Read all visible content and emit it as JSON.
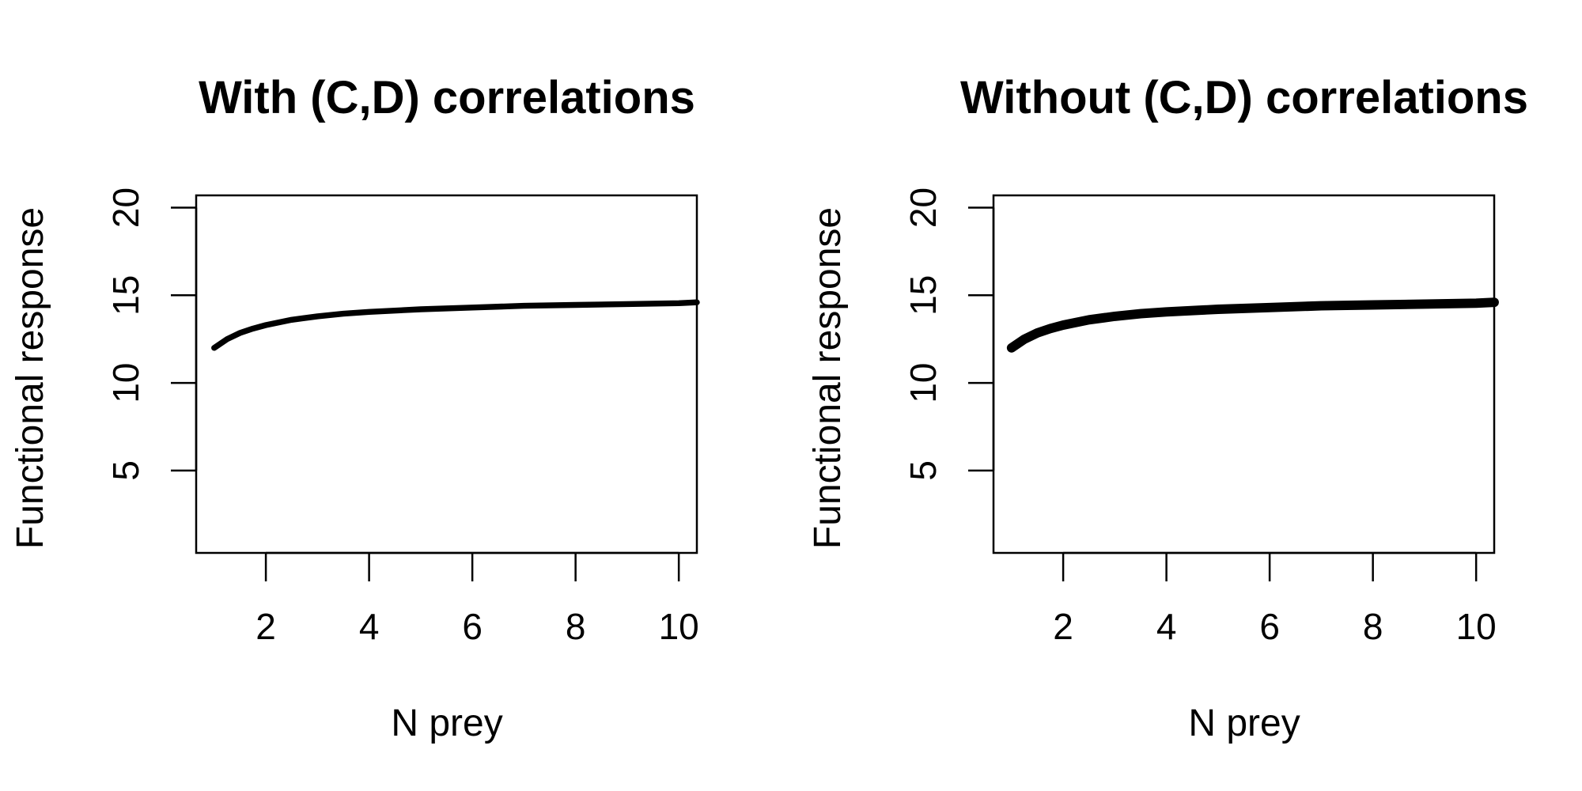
{
  "chart_data": [
    {
      "type": "line",
      "title": "With (C,D) correlations",
      "xlabel": "N prey",
      "ylabel": "Functional response",
      "xlim": [
        0.65,
        10.35
      ],
      "ylim": [
        0.3,
        20.7
      ],
      "xticks": [
        2,
        4,
        6,
        8,
        10
      ],
      "yticks": [
        5,
        10,
        15,
        20
      ],
      "grid": false,
      "series": [
        {
          "x": [
            1,
            1.25,
            1.5,
            1.75,
            2,
            2.5,
            3,
            3.5,
            4,
            5,
            6,
            7,
            8,
            9,
            10,
            10.35
          ],
          "y": [
            12.0,
            12.5,
            12.85,
            13.1,
            13.3,
            13.6,
            13.8,
            13.95,
            14.05,
            14.2,
            14.3,
            14.4,
            14.45,
            14.5,
            14.55,
            14.6
          ],
          "band": 0.1
        }
      ]
    },
    {
      "type": "line",
      "title": "Without (C,D) correlations",
      "xlabel": "N prey",
      "ylabel": "Functional response",
      "xlim": [
        0.65,
        10.35
      ],
      "ylim": [
        0.3,
        20.7
      ],
      "xticks": [
        2,
        4,
        6,
        8,
        10
      ],
      "yticks": [
        5,
        10,
        15,
        20
      ],
      "grid": false,
      "series": [
        {
          "x": [
            1,
            1.25,
            1.5,
            1.75,
            2,
            2.5,
            3,
            3.5,
            4,
            5,
            6,
            7,
            8,
            9,
            10,
            10.35
          ],
          "y": [
            12.0,
            12.5,
            12.85,
            13.1,
            13.3,
            13.6,
            13.8,
            13.95,
            14.05,
            14.2,
            14.3,
            14.4,
            14.45,
            14.5,
            14.55,
            14.6
          ],
          "band": 0.2
        }
      ]
    }
  ]
}
